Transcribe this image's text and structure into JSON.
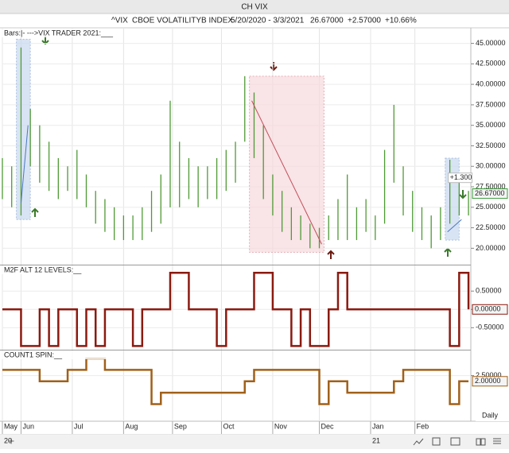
{
  "window": {
    "title": "CH VIX",
    "symbol": "^VIX",
    "name": "CBOE VOLATILITYB INDEX",
    "range": "5/20/2020 - 3/3/2021",
    "last": "26.67000",
    "change": "+2.57000",
    "change_pct": "+10.66%",
    "period": "Daily"
  },
  "chart_data": [
    {
      "type": "hilo",
      "title": "Bars:|-  --->VIX TRADER 2021:___",
      "color": "#4f9a35",
      "x": [
        0,
        4,
        8,
        12,
        16,
        20,
        24,
        28,
        32,
        36,
        40,
        44,
        48,
        52,
        56,
        60,
        64,
        68,
        72,
        76,
        80,
        84,
        88,
        92,
        96,
        100,
        104,
        108,
        112,
        116,
        120,
        124,
        128,
        132,
        136,
        140,
        144,
        148,
        152,
        156,
        160,
        164,
        168,
        172,
        176,
        180,
        184,
        188,
        192,
        196,
        200
      ],
      "low": [
        26,
        25,
        24,
        30,
        28,
        27,
        26,
        27,
        26,
        25,
        23,
        22,
        21,
        21,
        21,
        21,
        22,
        23,
        25,
        25,
        26,
        25,
        26,
        26,
        27,
        28,
        33,
        31,
        26,
        24,
        22,
        21,
        21,
        20,
        20,
        21,
        21,
        21,
        21,
        22,
        21,
        23,
        28,
        24,
        22,
        21,
        20,
        21,
        23,
        24,
        24
      ],
      "high": [
        31,
        30,
        44.5,
        37,
        35,
        33,
        31,
        30,
        32,
        29,
        27,
        26,
        25,
        24,
        24,
        25,
        27,
        29,
        38,
        33,
        31,
        30,
        30,
        31,
        32,
        33,
        41,
        39,
        35,
        29,
        27,
        25,
        24,
        23,
        22.5,
        24,
        26,
        29,
        25,
        26,
        24,
        32,
        37.5,
        30,
        27,
        25,
        24,
        25,
        30.8,
        29,
        27
      ],
      "xlim": [
        0,
        201
      ],
      "xticks": [
        {
          "value": 0,
          "label": "May"
        },
        {
          "value": 8,
          "label": "Jun"
        },
        {
          "value": 30,
          "label": "Jul"
        },
        {
          "value": 52,
          "label": "Aug"
        },
        {
          "value": 73,
          "label": "Sep"
        },
        {
          "value": 94,
          "label": "Oct"
        },
        {
          "value": 116,
          "label": "Nov"
        },
        {
          "value": 136,
          "label": "Dec"
        },
        {
          "value": 158,
          "label": "Jan"
        },
        {
          "value": 177,
          "label": "Feb"
        }
      ],
      "year_labels": [
        {
          "value": 0,
          "label": "20"
        },
        {
          "value": 158,
          "label": "21"
        }
      ],
      "ylim": [
        18,
        46.8
      ],
      "yticks": [
        {
          "value": 20,
          "label": "20.00000"
        },
        {
          "value": 22.5,
          "label": "22.50000"
        },
        {
          "value": 25,
          "label": "25.00000"
        },
        {
          "value": 27.5,
          "label": "27.50000"
        },
        {
          "value": 30,
          "label": "30.00000"
        },
        {
          "value": 32.5,
          "label": "32.50000"
        },
        {
          "value": 35,
          "label": "35.00000"
        },
        {
          "value": 37.5,
          "label": "37.50000"
        },
        {
          "value": 40,
          "label": "40.00000"
        },
        {
          "value": 42.5,
          "label": "42.50000"
        },
        {
          "value": 45,
          "label": "45.00000"
        }
      ],
      "highlights": [
        {
          "xlim": [
            6,
            12
          ],
          "ylim": [
            23.5,
            45.5
          ],
          "color": "#c8d8ee",
          "line_x": [
            8,
            11
          ],
          "line_y": [
            25.5,
            35
          ],
          "line_color": "#4a78c0"
        },
        {
          "xlim": [
            106,
            138
          ],
          "ylim": [
            19.5,
            41
          ],
          "color": "#f7d9dd",
          "line_x": [
            107,
            137
          ],
          "line_y": [
            38,
            20.5
          ],
          "line_color": "#c0505a"
        },
        {
          "xlim": [
            190,
            196
          ],
          "ylim": [
            21,
            31
          ],
          "color": "#c8d8ee",
          "line_x": [
            191,
            197
          ],
          "line_y": [
            22,
            23.5
          ],
          "line_color": "#4a78c0"
        }
      ],
      "annotations": [
        {
          "text": "+1.300",
          "x": 192,
          "y": 28.6,
          "color": "#3a9a3a"
        }
      ],
      "last_label": {
        "value": 26.67,
        "label": "26.67000",
        "color": "#3a9a3a"
      }
    },
    {
      "type": "step",
      "title": "M2F ALT 12 LEVELS:__",
      "color": "#8b1a10",
      "x": [
        0,
        4,
        8,
        12,
        16,
        20,
        24,
        28,
        32,
        36,
        40,
        44,
        48,
        52,
        56,
        60,
        64,
        68,
        72,
        76,
        80,
        84,
        88,
        92,
        96,
        100,
        104,
        108,
        112,
        116,
        120,
        124,
        128,
        132,
        136,
        140,
        144,
        148,
        152,
        156,
        160,
        164,
        168,
        172,
        176,
        180,
        184,
        188,
        192,
        196,
        200
      ],
      "values": [
        0,
        0,
        -1,
        -1,
        0,
        -1,
        0,
        0,
        -1,
        0,
        -1,
        0,
        0,
        0,
        -1,
        0,
        0,
        0,
        1,
        1,
        0,
        0,
        0,
        -1,
        0,
        0,
        0,
        1,
        1,
        0,
        0,
        -1,
        0,
        -1,
        -1,
        0,
        1,
        0,
        0,
        0,
        0,
        0,
        0,
        0,
        0,
        0,
        0,
        0,
        -1,
        1,
        0
      ],
      "xlim": [
        0,
        201
      ],
      "ylim": [
        -1.1,
        1.2
      ],
      "yticks": [
        {
          "value": -0.5,
          "label": "-0.50000"
        },
        {
          "value": 0,
          "label": "0.00000"
        },
        {
          "value": 0.5,
          "label": "0.50000"
        }
      ],
      "last_label": {
        "value": 0,
        "label": "0.00000",
        "color": "#8b1a10"
      }
    },
    {
      "type": "step",
      "title": "COUNT1 SPIN:__",
      "color": "#a0601a",
      "x": [
        0,
        4,
        8,
        12,
        16,
        20,
        24,
        28,
        32,
        36,
        40,
        44,
        48,
        52,
        56,
        60,
        64,
        68,
        72,
        76,
        80,
        84,
        88,
        92,
        96,
        100,
        104,
        108,
        112,
        116,
        120,
        124,
        128,
        132,
        136,
        140,
        144,
        148,
        152,
        156,
        160,
        164,
        168,
        172,
        176,
        180,
        184,
        188,
        192,
        196,
        200
      ],
      "values": [
        3,
        3,
        3,
        3,
        2,
        2,
        2,
        3,
        3,
        4,
        4,
        3,
        3,
        3,
        3,
        3,
        0,
        1,
        1,
        1,
        1,
        1,
        1,
        1,
        1,
        1,
        2,
        3,
        3,
        3,
        3,
        3,
        3,
        3,
        0,
        2,
        2,
        1,
        1,
        1,
        1,
        1,
        2,
        3,
        3,
        3,
        3,
        3,
        0,
        2,
        2
      ],
      "xlim": [
        0,
        201
      ],
      "ylim": [
        -1.5,
        4.7
      ],
      "yticks": [
        {
          "value": 2.5,
          "label": "2.50000"
        }
      ],
      "last_label": {
        "value": 2,
        "label": "2.00000",
        "color": "#a0601a"
      }
    }
  ]
}
